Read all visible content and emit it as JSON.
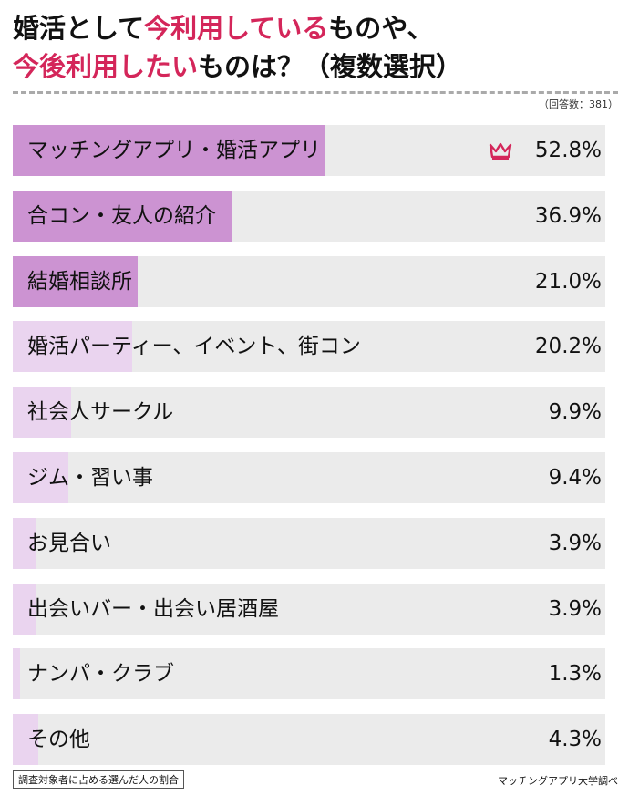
{
  "title": {
    "line1_part1": "婚活として",
    "line1_highlight": "今利用している",
    "line1_part2": "ものや、",
    "line2_highlight": "今後利用したい",
    "line2_part2": "ものは？（複数選択）"
  },
  "respondents": "（回答数：381）",
  "footer": {
    "note": "調査対象者に占める選んだ人の割合",
    "source": "マッチングアプリ大学調べ"
  },
  "colors": {
    "title_accent": "#d4265a",
    "bar_strong": "#cc93d2",
    "bar_light": "#ead4ef",
    "row_background": "#ebebeb",
    "crown": "#d4265a"
  },
  "chart_data": {
    "type": "bar",
    "orientation": "horizontal",
    "title": "婚活として今利用しているものや、今後利用したいものは？（複数選択）",
    "unit": "%",
    "xlim": [
      0,
      100
    ],
    "categories": [
      "マッチングアプリ・婚活アプリ",
      "合コン・友人の紹介",
      "結婚相談所",
      "婚活パーティー、イベント、街コン",
      "社会人サークル",
      "ジム・習い事",
      "お見合い",
      "出会いバー・出会い居酒屋",
      "ナンパ・クラブ",
      "その他"
    ],
    "values": [
      52.8,
      36.9,
      21.0,
      20.2,
      9.9,
      9.4,
      3.9,
      3.9,
      1.3,
      4.3
    ],
    "value_labels": [
      "52.8%",
      "36.9%",
      "21.0%",
      "20.2%",
      "9.9%",
      "9.4%",
      "3.9%",
      "3.9%",
      "1.3%",
      "4.3%"
    ],
    "highlighted_top": 3,
    "top_marker": "crown-icon"
  }
}
